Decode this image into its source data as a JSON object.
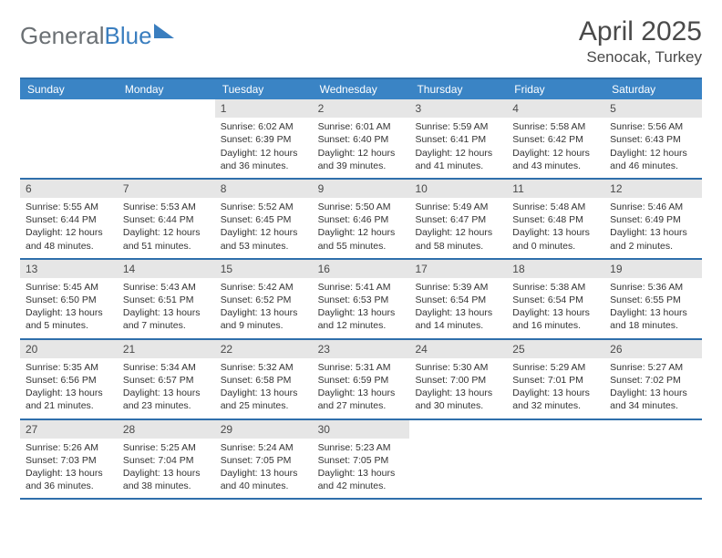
{
  "brand": {
    "part1": "General",
    "part2": "Blue"
  },
  "title": "April 2025",
  "location": "Senocak, Turkey",
  "colors": {
    "header_bg": "#3a84c5",
    "rule": "#2f6fab",
    "daynum_bg": "#e6e6e6",
    "text": "#333333",
    "brand_gray": "#6b7074",
    "brand_blue": "#3a7ebf"
  },
  "typography": {
    "title_fontsize": 30,
    "location_fontsize": 17,
    "dow_fontsize": 12,
    "daynum_fontsize": 12,
    "body_fontsize": 10.5
  },
  "dow": [
    "Sunday",
    "Monday",
    "Tuesday",
    "Wednesday",
    "Thursday",
    "Friday",
    "Saturday"
  ],
  "weeks": [
    [
      {
        "n": "",
        "sr": "",
        "ss": "",
        "dl": ""
      },
      {
        "n": "",
        "sr": "",
        "ss": "",
        "dl": ""
      },
      {
        "n": "1",
        "sr": "Sunrise: 6:02 AM",
        "ss": "Sunset: 6:39 PM",
        "dl": "Daylight: 12 hours and 36 minutes."
      },
      {
        "n": "2",
        "sr": "Sunrise: 6:01 AM",
        "ss": "Sunset: 6:40 PM",
        "dl": "Daylight: 12 hours and 39 minutes."
      },
      {
        "n": "3",
        "sr": "Sunrise: 5:59 AM",
        "ss": "Sunset: 6:41 PM",
        "dl": "Daylight: 12 hours and 41 minutes."
      },
      {
        "n": "4",
        "sr": "Sunrise: 5:58 AM",
        "ss": "Sunset: 6:42 PM",
        "dl": "Daylight: 12 hours and 43 minutes."
      },
      {
        "n": "5",
        "sr": "Sunrise: 5:56 AM",
        "ss": "Sunset: 6:43 PM",
        "dl": "Daylight: 12 hours and 46 minutes."
      }
    ],
    [
      {
        "n": "6",
        "sr": "Sunrise: 5:55 AM",
        "ss": "Sunset: 6:44 PM",
        "dl": "Daylight: 12 hours and 48 minutes."
      },
      {
        "n": "7",
        "sr": "Sunrise: 5:53 AM",
        "ss": "Sunset: 6:44 PM",
        "dl": "Daylight: 12 hours and 51 minutes."
      },
      {
        "n": "8",
        "sr": "Sunrise: 5:52 AM",
        "ss": "Sunset: 6:45 PM",
        "dl": "Daylight: 12 hours and 53 minutes."
      },
      {
        "n": "9",
        "sr": "Sunrise: 5:50 AM",
        "ss": "Sunset: 6:46 PM",
        "dl": "Daylight: 12 hours and 55 minutes."
      },
      {
        "n": "10",
        "sr": "Sunrise: 5:49 AM",
        "ss": "Sunset: 6:47 PM",
        "dl": "Daylight: 12 hours and 58 minutes."
      },
      {
        "n": "11",
        "sr": "Sunrise: 5:48 AM",
        "ss": "Sunset: 6:48 PM",
        "dl": "Daylight: 13 hours and 0 minutes."
      },
      {
        "n": "12",
        "sr": "Sunrise: 5:46 AM",
        "ss": "Sunset: 6:49 PM",
        "dl": "Daylight: 13 hours and 2 minutes."
      }
    ],
    [
      {
        "n": "13",
        "sr": "Sunrise: 5:45 AM",
        "ss": "Sunset: 6:50 PM",
        "dl": "Daylight: 13 hours and 5 minutes."
      },
      {
        "n": "14",
        "sr": "Sunrise: 5:43 AM",
        "ss": "Sunset: 6:51 PM",
        "dl": "Daylight: 13 hours and 7 minutes."
      },
      {
        "n": "15",
        "sr": "Sunrise: 5:42 AM",
        "ss": "Sunset: 6:52 PM",
        "dl": "Daylight: 13 hours and 9 minutes."
      },
      {
        "n": "16",
        "sr": "Sunrise: 5:41 AM",
        "ss": "Sunset: 6:53 PM",
        "dl": "Daylight: 13 hours and 12 minutes."
      },
      {
        "n": "17",
        "sr": "Sunrise: 5:39 AM",
        "ss": "Sunset: 6:54 PM",
        "dl": "Daylight: 13 hours and 14 minutes."
      },
      {
        "n": "18",
        "sr": "Sunrise: 5:38 AM",
        "ss": "Sunset: 6:54 PM",
        "dl": "Daylight: 13 hours and 16 minutes."
      },
      {
        "n": "19",
        "sr": "Sunrise: 5:36 AM",
        "ss": "Sunset: 6:55 PM",
        "dl": "Daylight: 13 hours and 18 minutes."
      }
    ],
    [
      {
        "n": "20",
        "sr": "Sunrise: 5:35 AM",
        "ss": "Sunset: 6:56 PM",
        "dl": "Daylight: 13 hours and 21 minutes."
      },
      {
        "n": "21",
        "sr": "Sunrise: 5:34 AM",
        "ss": "Sunset: 6:57 PM",
        "dl": "Daylight: 13 hours and 23 minutes."
      },
      {
        "n": "22",
        "sr": "Sunrise: 5:32 AM",
        "ss": "Sunset: 6:58 PM",
        "dl": "Daylight: 13 hours and 25 minutes."
      },
      {
        "n": "23",
        "sr": "Sunrise: 5:31 AM",
        "ss": "Sunset: 6:59 PM",
        "dl": "Daylight: 13 hours and 27 minutes."
      },
      {
        "n": "24",
        "sr": "Sunrise: 5:30 AM",
        "ss": "Sunset: 7:00 PM",
        "dl": "Daylight: 13 hours and 30 minutes."
      },
      {
        "n": "25",
        "sr": "Sunrise: 5:29 AM",
        "ss": "Sunset: 7:01 PM",
        "dl": "Daylight: 13 hours and 32 minutes."
      },
      {
        "n": "26",
        "sr": "Sunrise: 5:27 AM",
        "ss": "Sunset: 7:02 PM",
        "dl": "Daylight: 13 hours and 34 minutes."
      }
    ],
    [
      {
        "n": "27",
        "sr": "Sunrise: 5:26 AM",
        "ss": "Sunset: 7:03 PM",
        "dl": "Daylight: 13 hours and 36 minutes."
      },
      {
        "n": "28",
        "sr": "Sunrise: 5:25 AM",
        "ss": "Sunset: 7:04 PM",
        "dl": "Daylight: 13 hours and 38 minutes."
      },
      {
        "n": "29",
        "sr": "Sunrise: 5:24 AM",
        "ss": "Sunset: 7:05 PM",
        "dl": "Daylight: 13 hours and 40 minutes."
      },
      {
        "n": "30",
        "sr": "Sunrise: 5:23 AM",
        "ss": "Sunset: 7:05 PM",
        "dl": "Daylight: 13 hours and 42 minutes."
      },
      {
        "n": "",
        "sr": "",
        "ss": "",
        "dl": ""
      },
      {
        "n": "",
        "sr": "",
        "ss": "",
        "dl": ""
      },
      {
        "n": "",
        "sr": "",
        "ss": "",
        "dl": ""
      }
    ]
  ]
}
